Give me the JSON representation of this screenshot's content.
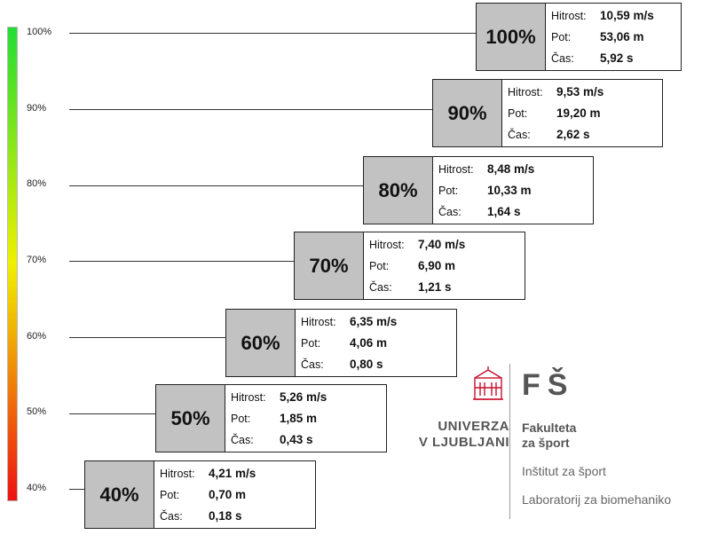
{
  "scale": {
    "colors": {
      "top": "#22dd33",
      "mid": "#f0f000",
      "bottom": "#ee1111"
    },
    "labels": [
      "100%",
      "90%",
      "80%",
      "70%",
      "60%",
      "50%",
      "40%"
    ]
  },
  "labels": {
    "speed": "Hitrost:",
    "distance": "Pot:",
    "time": "Čas:"
  },
  "levels": [
    {
      "percent": "100%",
      "speed": "10,59 m/s",
      "distance": "53,06 m",
      "time": "5,92 s"
    },
    {
      "percent": "90%",
      "speed": "9,53 m/s",
      "distance": "19,20 m",
      "time": "2,62 s"
    },
    {
      "percent": "80%",
      "speed": "8,48 m/s",
      "distance": "10,33 m",
      "time": "1,64 s"
    },
    {
      "percent": "70%",
      "speed": "7,40 m/s",
      "distance": "6,90 m",
      "time": "1,21 s"
    },
    {
      "percent": "60%",
      "speed": "6,35 m/s",
      "distance": "4,06 m",
      "time": "0,80 s"
    },
    {
      "percent": "50%",
      "speed": "5,26 m/s",
      "distance": "1,85 m",
      "time": "0,43 s"
    },
    {
      "percent": "40%",
      "speed": "4,21 m/s",
      "distance": "0,70 m",
      "time": "0,18 s"
    }
  ],
  "logo": {
    "university_line1": "UNIVERZA",
    "university_line2": "V LJUBLJANI",
    "faculty_mark": "FŠ",
    "faculty_line1": "Fakulteta",
    "faculty_line2": "za šport",
    "institute": "Inštitut za šport",
    "laboratory": "Laboratorij za biomehaniko",
    "emblem_color": "#c8102e"
  }
}
